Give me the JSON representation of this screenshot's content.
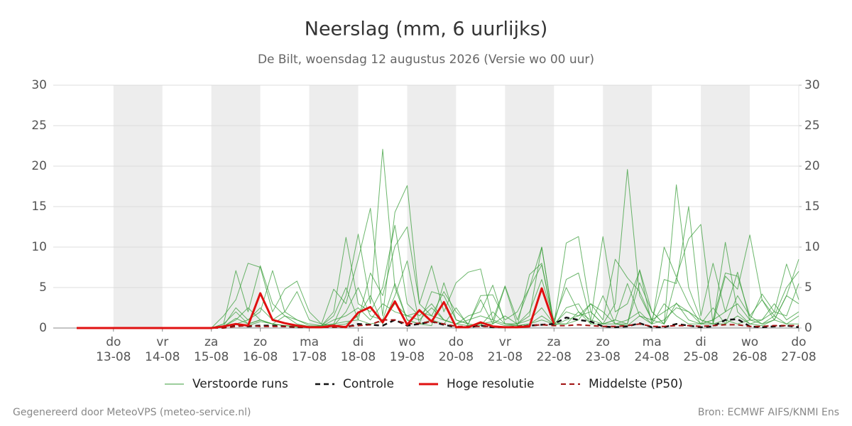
{
  "chart_data": {
    "type": "line",
    "title": "Neerslag (mm, 6 uurlijks)",
    "subtitle": "De Bilt, woensdag 12 augustus 2026 (Versie wo 00 uur)",
    "footer_left": "Gegenereerd door MeteoVPS (meteo-service.nl)",
    "footer_right": "Bron: ECMWF AIFS/KNMI Ens",
    "xlim": [
      11.77,
      27
    ],
    "xticks": [
      {
        "value": 13,
        "label": "13-08"
      },
      {
        "value": 14,
        "label": "14-08"
      },
      {
        "value": 15,
        "label": "15-08"
      },
      {
        "value": 16,
        "label": "16-08"
      },
      {
        "value": 17,
        "label": "17-08"
      },
      {
        "value": 18,
        "label": "18-08"
      },
      {
        "value": 19,
        "label": "19-08"
      },
      {
        "value": 20,
        "label": "20-08"
      },
      {
        "value": 21,
        "label": "21-08"
      },
      {
        "value": 22,
        "label": "22-08"
      },
      {
        "value": 23,
        "label": "23-08"
      },
      {
        "value": 24,
        "label": "24-08"
      },
      {
        "value": 25,
        "label": "25-08"
      },
      {
        "value": 26,
        "label": "26-08"
      },
      {
        "value": 27,
        "label": "27-08"
      }
    ],
    "xtick_days": [
      "do",
      "vr",
      "za",
      "zo",
      "ma",
      "di",
      "wo",
      "do",
      "vr",
      "za",
      "zo",
      "ma",
      "di",
      "wo",
      "do"
    ],
    "ylim": [
      0,
      30
    ],
    "yticks": [
      0,
      5,
      10,
      15,
      20,
      25,
      30
    ],
    "y2lim": [
      0,
      30
    ],
    "y2ticks": [
      0,
      5,
      10,
      15,
      20,
      25,
      30
    ],
    "grid": true,
    "legend": "bottom",
    "x": [
      12.25,
      12.5,
      12.75,
      13,
      13.25,
      13.5,
      13.75,
      14,
      14.25,
      14.5,
      14.75,
      15,
      15.25,
      15.5,
      15.75,
      16,
      16.25,
      16.5,
      16.75,
      17,
      17.25,
      17.5,
      17.75,
      18,
      18.25,
      18.5,
      18.75,
      19,
      19.25,
      19.5,
      19.75,
      20,
      20.25,
      20.5,
      20.75,
      21,
      21.25,
      21.5,
      21.75,
      22,
      22.25,
      22.5,
      22.75,
      23,
      23.25,
      23.5,
      23.75,
      24,
      24.25,
      24.5,
      24.75,
      25,
      25.25,
      25.5,
      25.75,
      26,
      26.25,
      26.5,
      26.75,
      27
    ],
    "ensemble": {
      "name": "Verstoorde runs",
      "color": "#3a9e3a",
      "runs": [
        [
          0,
          0,
          0,
          0,
          0,
          0,
          0,
          0,
          0,
          0,
          0,
          0,
          0.5,
          7.1,
          2.0,
          7.7,
          3.0,
          1.5,
          0.5,
          0.2,
          0.3,
          0.5,
          4.0,
          11.6,
          3.0,
          22.1,
          5.0,
          1.0,
          0.5,
          0.3,
          5.6,
          1.0,
          0.5,
          0.3,
          2.0,
          0.5,
          0.3,
          6.6,
          8.0,
          0.5,
          10.5,
          11.3,
          2.0,
          0.5,
          3.0,
          19.6,
          4.0,
          1.0,
          0.5,
          17.7,
          5.0,
          1.0,
          0.5,
          10.6,
          2.0,
          0.5,
          0.3,
          1.0,
          4.0,
          8.5
        ],
        [
          0,
          0,
          0,
          0,
          0,
          0,
          0,
          0,
          0,
          0,
          0,
          0,
          1.5,
          3.5,
          8.0,
          7.5,
          2.0,
          4.8,
          5.8,
          2.0,
          0.5,
          4.8,
          3.0,
          8.5,
          14.8,
          1.5,
          14.3,
          17.6,
          3.0,
          7.7,
          2.0,
          5.6,
          6.9,
          7.3,
          1.0,
          5.2,
          1.0,
          5.0,
          7.8,
          0.5,
          6.0,
          6.8,
          1.0,
          11.3,
          2.0,
          3.0,
          7.1,
          0.5,
          10.0,
          6.3,
          11.0,
          12.8,
          0.5,
          6.4,
          4.8,
          11.5,
          3.5,
          1.5,
          5.0,
          7.0
        ],
        [
          0,
          0,
          0,
          0,
          0,
          0,
          0,
          0,
          0,
          0,
          0,
          0,
          0.3,
          2.5,
          1.0,
          2.0,
          7.1,
          2.0,
          1.0,
          0.5,
          0.3,
          1.5,
          5.0,
          1.0,
          6.8,
          4.0,
          10.1,
          12.5,
          3.0,
          1.5,
          4.5,
          2.0,
          0.5,
          4.0,
          4.1,
          1.0,
          2.0,
          5.0,
          10.0,
          0.3,
          1.0,
          1.5,
          3.0,
          1.0,
          8.5,
          6.2,
          4.5,
          1.0,
          6.0,
          5.5,
          15.0,
          1.5,
          8.0,
          2.0,
          6.9,
          1.0,
          4.2,
          2.0,
          7.9,
          3.5
        ],
        [
          0,
          0,
          0,
          0,
          0,
          0,
          0,
          0,
          0,
          0,
          0,
          0,
          0.2,
          1.0,
          2.5,
          1.0,
          0.5,
          0.3,
          0.2,
          0.1,
          0.3,
          2.0,
          11.2,
          3.0,
          2.0,
          5.0,
          12.7,
          3.0,
          1.5,
          3.0,
          1.0,
          0.5,
          1.5,
          2.0,
          5.3,
          0.5,
          0.5,
          1.5,
          10.0,
          0.3,
          2.5,
          3.0,
          0.5,
          0.5,
          1.0,
          0.5,
          7.2,
          2.0,
          0.5,
          6.2,
          3.0,
          0.5,
          1.0,
          6.8,
          6.4,
          1.5,
          0.5,
          1.5,
          0.5,
          0.5
        ],
        [
          0,
          0,
          0,
          0,
          0,
          0,
          0,
          0,
          0,
          0,
          0,
          0,
          0.5,
          2.0,
          0.5,
          1.0,
          0.5,
          0.3,
          0.1,
          0.1,
          0.1,
          0.3,
          0.5,
          1.5,
          4.0,
          0.5,
          4.0,
          8.3,
          0.5,
          1.0,
          0.5,
          2.5,
          0.3,
          0.5,
          0.5,
          5.1,
          0.3,
          0.5,
          1.5,
          0.5,
          0.5,
          2.0,
          0.5,
          4.0,
          0.5,
          0.5,
          5.6,
          2.0,
          0.5,
          3.1,
          1.0,
          0.5,
          2.5,
          0.5,
          4.0,
          1.5,
          3.5,
          1.0,
          4.0,
          3.0
        ],
        [
          0,
          0,
          0,
          0,
          0,
          0,
          0,
          0,
          0,
          0,
          0,
          0,
          0.1,
          0.5,
          1.0,
          2.5,
          1.0,
          2.0,
          4.5,
          1.0,
          0.5,
          0.3,
          2.0,
          5.0,
          1.5,
          1.0,
          5.5,
          1.0,
          0.5,
          4.5,
          4.0,
          1.0,
          0.5,
          3.5,
          0.5,
          1.5,
          0.5,
          2.0,
          6.0,
          1.0,
          5.0,
          2.0,
          1.0,
          0.5,
          0.5,
          0.3,
          1.5,
          0.5,
          1.0,
          2.5,
          2.0,
          1.0,
          0.5,
          0.5,
          1.5,
          0.5,
          1.0,
          2.0,
          1.5,
          5.5
        ],
        [
          0,
          0,
          0,
          0,
          0,
          0,
          0,
          0,
          0,
          0,
          0,
          0,
          0.2,
          1.2,
          0.5,
          1.0,
          0.5,
          1.5,
          1.0,
          0.3,
          0.2,
          1.0,
          1.5,
          2.5,
          1.0,
          3.0,
          2.0,
          1.5,
          2.0,
          1.5,
          1.0,
          0.5,
          1.0,
          1.5,
          1.0,
          0.5,
          0.5,
          1.0,
          2.5,
          0.5,
          2.0,
          1.5,
          2.0,
          0.5,
          1.0,
          5.5,
          1.5,
          1.0,
          2.0,
          3.0,
          2.0,
          0.5,
          1.0,
          2.0,
          3.0,
          1.0,
          1.0,
          3.0,
          1.0,
          2.0
        ],
        [
          0,
          0,
          0,
          0,
          0,
          0,
          0,
          0,
          0,
          0,
          0,
          0,
          0.1,
          0.5,
          0.3,
          0.8,
          0.5,
          0.3,
          0.2,
          0.1,
          0.3,
          0.5,
          0.8,
          1.0,
          0.5,
          0.8,
          3.0,
          1.5,
          1.0,
          2.5,
          1.0,
          0.5,
          0.3,
          0.5,
          0.8,
          0.3,
          0.3,
          0.5,
          1.0,
          0.5,
          0.5,
          1.0,
          3.0,
          2.0,
          0.5,
          1.0,
          2.0,
          0.5,
          3.0,
          1.5,
          0.5,
          0.5,
          0.5,
          1.0,
          0.5,
          1.0,
          0.5,
          1.0,
          0.5,
          1.5
        ]
      ]
    },
    "series": [
      {
        "name": "Controle",
        "color": "#111111",
        "style": "dashed",
        "width": 2.5,
        "values": [
          0,
          0,
          0,
          0,
          0,
          0,
          0,
          0,
          0,
          0,
          0,
          0,
          0.1,
          0.4,
          0.2,
          0.3,
          0.3,
          0.2,
          0.1,
          0.1,
          0.1,
          0.2,
          0.1,
          0.5,
          0.4,
          0.3,
          1.0,
          0.3,
          0.5,
          0.8,
          0.4,
          0.1,
          0.1,
          0.3,
          0.1,
          0.1,
          0.1,
          0.3,
          0.4,
          0.5,
          1.3,
          1.0,
          0.8,
          0.2,
          0.1,
          0.2,
          0.6,
          0.1,
          0.1,
          0.5,
          0.3,
          0.1,
          0.2,
          1.0,
          1.1,
          0.2,
          0.1,
          0.2,
          0.3,
          0.1
        ]
      },
      {
        "name": "Hoge resolutie",
        "color": "#e01010",
        "style": "solid",
        "width": 3,
        "values": [
          0,
          0,
          0,
          0,
          0,
          0,
          0,
          0,
          0,
          0,
          0,
          0,
          0.2,
          0.5,
          0.3,
          4.3,
          1.0,
          0.6,
          0.3,
          0.1,
          0.1,
          0.3,
          0.1,
          1.9,
          2.6,
          0.7,
          3.3,
          0.4,
          2.2,
          0.8,
          3.2,
          0.1,
          0.1,
          0.7,
          0.2,
          0.1,
          0.1,
          0.2,
          4.9,
          0.5,
          null,
          null,
          null,
          null,
          null,
          null,
          null,
          null,
          null,
          null,
          null,
          null,
          null,
          null,
          null,
          null,
          null,
          null,
          null,
          null
        ]
      },
      {
        "name": "Middelste (P50)",
        "color": "#a01010",
        "style": "dashed",
        "width": 2,
        "values": [
          0,
          0,
          0,
          0,
          0,
          0,
          0,
          0,
          0,
          0,
          0,
          0,
          0,
          0.2,
          0.3,
          0.2,
          0.2,
          0.2,
          0.1,
          0.1,
          0.1,
          0.1,
          0.2,
          0.3,
          0.4,
          1.0,
          1.0,
          0.5,
          0.6,
          0.8,
          0.5,
          0.2,
          0.2,
          0.2,
          0.2,
          0.1,
          0.2,
          0.3,
          0.4,
          0.3,
          0.3,
          0.4,
          0.3,
          0.2,
          0.2,
          0.3,
          0.5,
          0.2,
          0.2,
          0.3,
          0.3,
          0.2,
          0.3,
          0.4,
          0.4,
          0.2,
          0.2,
          0.3,
          0.3,
          0.3
        ]
      }
    ]
  }
}
